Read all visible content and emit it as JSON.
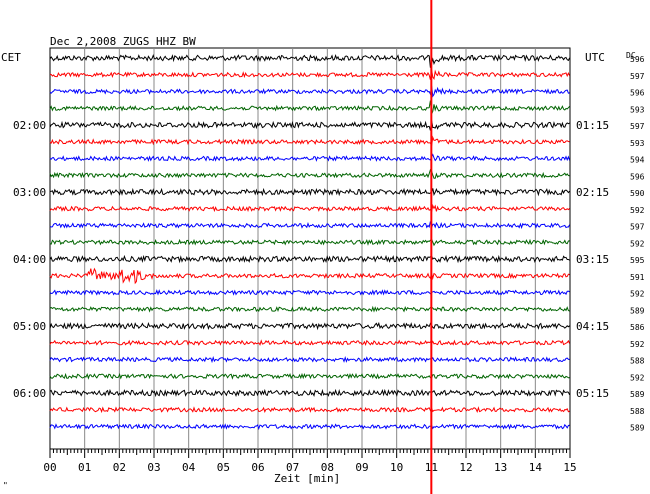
{
  "chart_data": {
    "type": "line",
    "title": "Dec 2,2008   ZUGS HHZ BW",
    "xlabel": "Zeit [min]",
    "x_ticks": [
      "00",
      "01",
      "02",
      "03",
      "04",
      "05",
      "06",
      "07",
      "08",
      "09",
      "10",
      "11",
      "12",
      "13",
      "14",
      "15"
    ],
    "xlim": [
      0,
      15
    ],
    "left_axis_label": "CET",
    "right_axis_label": "UTC",
    "dc_label": "DC",
    "left_time_labels": [
      {
        "row": 4,
        "text": "02:00"
      },
      {
        "row": 8,
        "text": "03:00"
      },
      {
        "row": 12,
        "text": "04:00"
      },
      {
        "row": 16,
        "text": "05:00"
      },
      {
        "row": 20,
        "text": "06:00"
      }
    ],
    "right_time_labels": [
      {
        "row": 4,
        "text": "01:15"
      },
      {
        "row": 8,
        "text": "02:15"
      },
      {
        "row": 12,
        "text": "03:15"
      },
      {
        "row": 16,
        "text": "04:15"
      },
      {
        "row": 20,
        "text": "05:15"
      }
    ],
    "dc_values": [
      "596",
      "597",
      "596",
      "593",
      "597",
      "593",
      "594",
      "596",
      "590",
      "592",
      "597",
      "592",
      "595",
      "591",
      "592",
      "589",
      "586",
      "592",
      "588",
      "592",
      "589",
      "588",
      "589"
    ],
    "trace_colors": [
      "#000000",
      "#ff0000",
      "#0000ff",
      "#006400"
    ],
    "event_marker": {
      "minute": 11,
      "color": "#ff0000"
    },
    "local_event": {
      "row": 13,
      "start_minute": 1.1,
      "end_minute": 3.0
    }
  },
  "corner_mark": "\""
}
